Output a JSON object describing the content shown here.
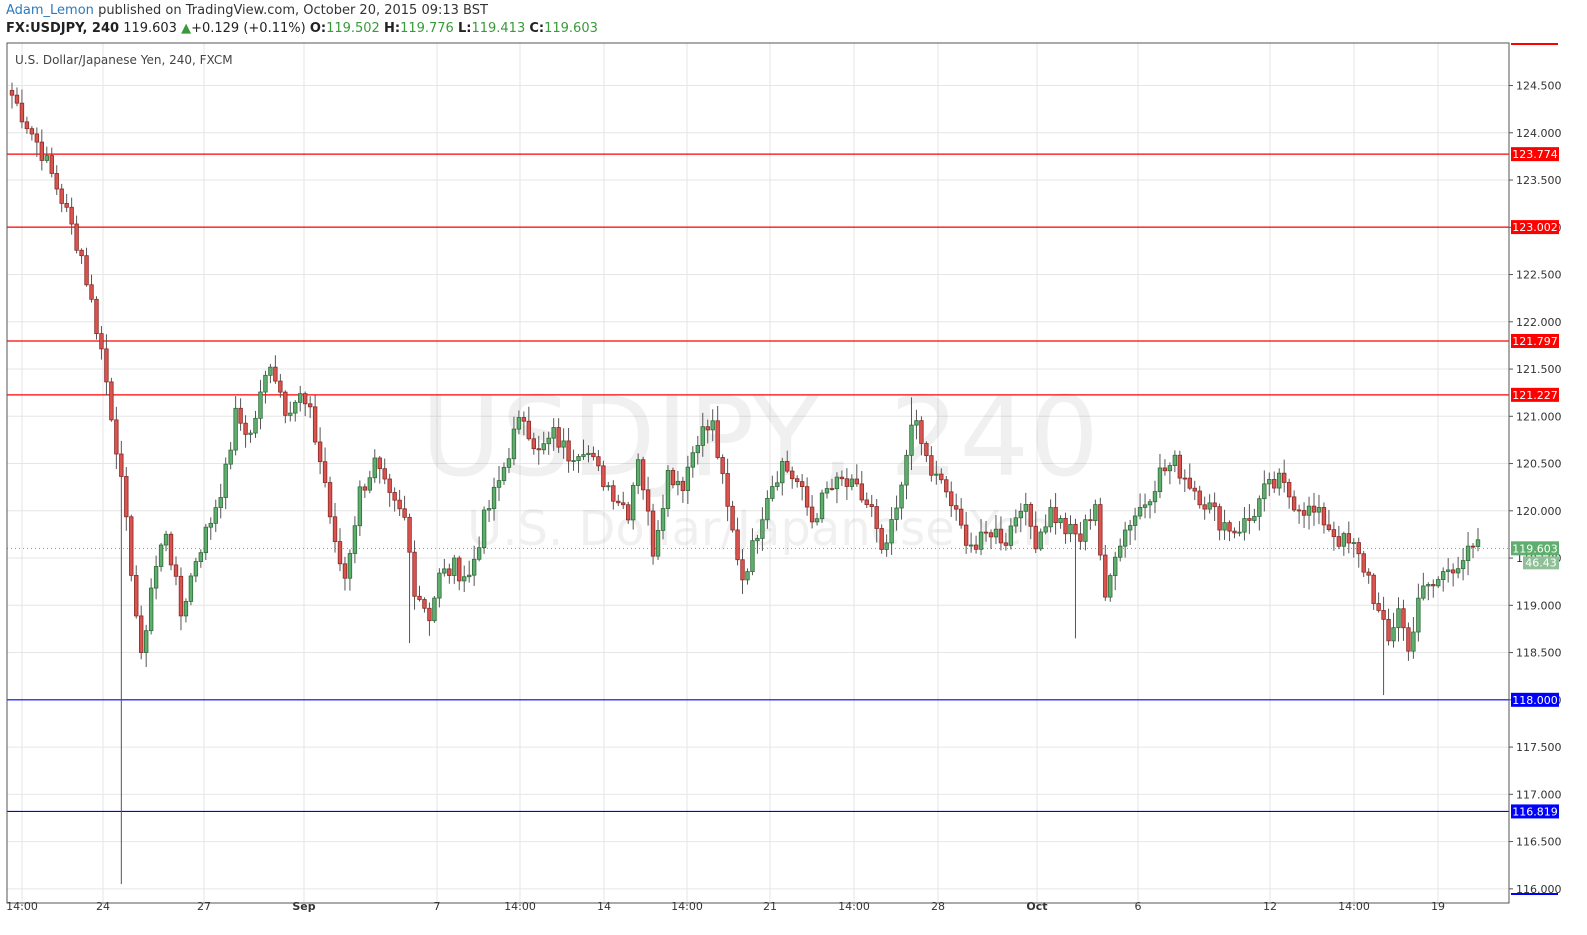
{
  "header": {
    "author": "Adam_Lemon",
    "published": "published on TradingView.com, October 20, 2015 09:13 BST",
    "symbol": "FX:USDJPY, 240",
    "price": "119.603",
    "arrow": "▲",
    "change": "+0.129 (+0.11%)",
    "o_key": "O:",
    "o_val": "119.502",
    "h_key": "H:",
    "h_val": "119.776",
    "l_key": "L:",
    "l_val": "119.413",
    "c_key": "C:",
    "c_val": "119.603"
  },
  "colors": {
    "up": "#5fae6e",
    "down": "#d9534f",
    "up_border": "#2f6b3a",
    "down_border": "#8a2a26",
    "resistance": "#ff0000",
    "support": "#0000ff",
    "grid": "#e6e6e6"
  },
  "chart_data": {
    "type": "candlestick",
    "title": "U.S. Dollar/Japanese Yen, 240, FXCM",
    "watermark": "USDJPY, 240",
    "watermark_sub": "U.S. Dollar/Japanese Yen",
    "grid": true,
    "ylim": [
      115.85,
      124.95
    ],
    "y_ticks": [
      "116.000",
      "116.500",
      "117.000",
      "117.500",
      "118.000",
      "118.500",
      "119.000",
      "119.500",
      "120.000",
      "120.500",
      "121.000",
      "121.500",
      "122.000",
      "122.500",
      "123.000",
      "123.500",
      "124.000",
      "124.500"
    ],
    "x_ticks": [
      "14:00",
      "24",
      "27",
      "Sep",
      "7",
      "14:00",
      "14",
      "14:00",
      "21",
      "14:00",
      "28",
      "Oct",
      "6",
      "12",
      "14:00",
      "19"
    ],
    "resistance_levels": [
      "123.774",
      "123.002",
      "121.797",
      "121.227"
    ],
    "support_levels": [
      "118.000",
      "116.819"
    ],
    "last_price": "119.603",
    "indicator_value": "46.43",
    "anchors": [
      {
        "i": 0,
        "p": 124.4
      },
      {
        "i": 6,
        "p": 123.8
      },
      {
        "i": 10,
        "p": 123.3
      },
      {
        "i": 14,
        "p": 122.7
      },
      {
        "i": 18,
        "p": 121.7
      },
      {
        "i": 21,
        "p": 120.7
      },
      {
        "i": 24,
        "p": 119.4
      },
      {
        "i": 26,
        "p": 118.4
      },
      {
        "i": 28,
        "p": 119.2
      },
      {
        "i": 31,
        "p": 119.8
      },
      {
        "i": 34,
        "p": 118.9
      },
      {
        "i": 37,
        "p": 119.5
      },
      {
        "i": 40,
        "p": 119.9
      },
      {
        "i": 43,
        "p": 120.4
      },
      {
        "i": 45,
        "p": 121.0
      },
      {
        "i": 48,
        "p": 120.8
      },
      {
        "i": 52,
        "p": 121.6
      },
      {
        "i": 55,
        "p": 121.1
      },
      {
        "i": 58,
        "p": 121.2
      },
      {
        "i": 60,
        "p": 121.0
      },
      {
        "i": 63,
        "p": 120.3
      },
      {
        "i": 65,
        "p": 119.6
      },
      {
        "i": 67,
        "p": 119.3
      },
      {
        "i": 70,
        "p": 120.2
      },
      {
        "i": 73,
        "p": 120.5
      },
      {
        "i": 76,
        "p": 120.1
      },
      {
        "i": 79,
        "p": 119.9
      },
      {
        "i": 81,
        "p": 119.2
      },
      {
        "i": 84,
        "p": 118.9
      },
      {
        "i": 86,
        "p": 119.3
      },
      {
        "i": 89,
        "p": 119.4
      },
      {
        "i": 92,
        "p": 119.3
      },
      {
        "i": 95,
        "p": 119.9
      },
      {
        "i": 98,
        "p": 120.3
      },
      {
        "i": 101,
        "p": 120.8
      },
      {
        "i": 103,
        "p": 121.0
      },
      {
        "i": 106,
        "p": 120.6
      },
      {
        "i": 109,
        "p": 120.8
      },
      {
        "i": 112,
        "p": 120.6
      },
      {
        "i": 115,
        "p": 120.7
      },
      {
        "i": 118,
        "p": 120.4
      },
      {
        "i": 121,
        "p": 120.2
      },
      {
        "i": 124,
        "p": 120.0
      },
      {
        "i": 126,
        "p": 120.6
      },
      {
        "i": 129,
        "p": 119.6
      },
      {
        "i": 132,
        "p": 120.4
      },
      {
        "i": 135,
        "p": 120.3
      },
      {
        "i": 138,
        "p": 120.8
      },
      {
        "i": 141,
        "p": 120.9
      },
      {
        "i": 144,
        "p": 120.0
      },
      {
        "i": 147,
        "p": 119.3
      },
      {
        "i": 149,
        "p": 119.6
      },
      {
        "i": 152,
        "p": 120.2
      },
      {
        "i": 155,
        "p": 120.5
      },
      {
        "i": 158,
        "p": 120.3
      },
      {
        "i": 161,
        "p": 119.9
      },
      {
        "i": 164,
        "p": 120.2
      },
      {
        "i": 167,
        "p": 120.3
      },
      {
        "i": 170,
        "p": 120.2
      },
      {
        "i": 173,
        "p": 120.0
      },
      {
        "i": 175,
        "p": 119.5
      },
      {
        "i": 177,
        "p": 119.8
      },
      {
        "i": 179,
        "p": 120.2
      },
      {
        "i": 181,
        "p": 121.0
      },
      {
        "i": 183,
        "p": 120.7
      },
      {
        "i": 185,
        "p": 120.4
      },
      {
        "i": 188,
        "p": 120.2
      },
      {
        "i": 191,
        "p": 119.8
      },
      {
        "i": 194,
        "p": 119.6
      },
      {
        "i": 197,
        "p": 119.8
      },
      {
        "i": 200,
        "p": 119.7
      },
      {
        "i": 203,
        "p": 120.1
      },
      {
        "i": 206,
        "p": 119.7
      },
      {
        "i": 209,
        "p": 120.0
      },
      {
        "i": 212,
        "p": 119.8
      },
      {
        "i": 215,
        "p": 119.7
      },
      {
        "i": 218,
        "p": 120.1
      },
      {
        "i": 220,
        "p": 119.0
      },
      {
        "i": 222,
        "p": 119.6
      },
      {
        "i": 225,
        "p": 119.9
      },
      {
        "i": 228,
        "p": 120.1
      },
      {
        "i": 231,
        "p": 120.4
      },
      {
        "i": 234,
        "p": 120.5
      },
      {
        "i": 237,
        "p": 120.3
      },
      {
        "i": 240,
        "p": 120.1
      },
      {
        "i": 243,
        "p": 119.9
      },
      {
        "i": 246,
        "p": 119.8
      },
      {
        "i": 249,
        "p": 119.9
      },
      {
        "i": 252,
        "p": 120.2
      },
      {
        "i": 255,
        "p": 120.3
      },
      {
        "i": 258,
        "p": 120.1
      },
      {
        "i": 261,
        "p": 120.0
      },
      {
        "i": 264,
        "p": 119.9
      },
      {
        "i": 267,
        "p": 119.7
      },
      {
        "i": 270,
        "p": 119.6
      },
      {
        "i": 273,
        "p": 119.3
      },
      {
        "i": 275,
        "p": 118.9
      },
      {
        "i": 277,
        "p": 118.6
      },
      {
        "i": 279,
        "p": 119.0
      },
      {
        "i": 281,
        "p": 118.5
      },
      {
        "i": 283,
        "p": 119.1
      },
      {
        "i": 286,
        "p": 119.2
      },
      {
        "i": 289,
        "p": 119.4
      },
      {
        "i": 292,
        "p": 119.5
      },
      {
        "i": 295,
        "p": 119.6
      }
    ],
    "candle_count": 296
  }
}
